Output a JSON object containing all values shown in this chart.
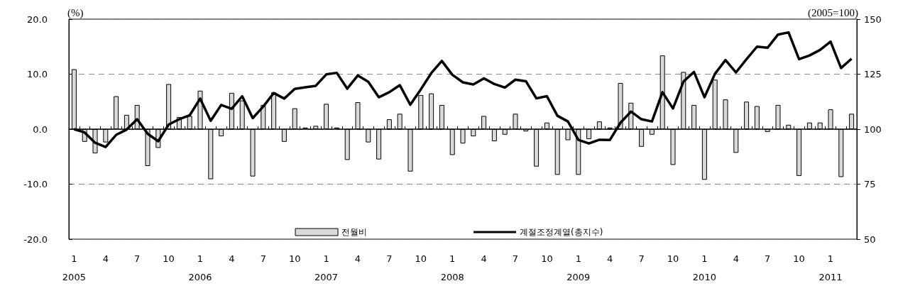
{
  "chart_data": {
    "type": "bar",
    "ylabel": "(%)",
    "y2label": "(2005=100)",
    "categories": [
      "1\n2005",
      null,
      null,
      "4",
      null,
      null,
      "7",
      null,
      null,
      "10",
      null,
      null,
      "1\n2006",
      null,
      null,
      "4",
      null,
      null,
      "7",
      null,
      null,
      "10",
      null,
      null,
      "1\n2007",
      null,
      null,
      "4",
      null,
      null,
      "7",
      null,
      null,
      "10",
      null,
      null,
      "1\n2008",
      null,
      null,
      "4",
      null,
      null,
      "7",
      null,
      null,
      "10",
      null,
      null,
      "1\n2009",
      null,
      null,
      "4",
      null,
      null,
      "7",
      null,
      null,
      "10",
      null,
      null,
      "1\n2010",
      null,
      null,
      "4",
      null,
      null,
      "7",
      null,
      null,
      "10",
      null,
      null,
      "1\n2011",
      null,
      null
    ],
    "series": [
      {
        "name": "전월비",
        "color": "#d9d9d9",
        "values": [
          10.9,
          -2.3,
          -4.4,
          -2.4,
          6.0,
          2.6,
          4.4,
          -6.7,
          -3.4,
          8.2,
          2.2,
          2.4,
          7.0,
          -9.1,
          -1.3,
          6.6,
          5.2,
          -8.6,
          4.4,
          6.7,
          -2.3,
          3.8,
          0.3,
          0.6,
          4.6,
          0.3,
          -5.6,
          4.9,
          -2.4,
          -5.5,
          1.8,
          2.8,
          -7.7,
          6.2,
          6.5,
          4.4,
          -4.7,
          -2.6,
          -1.3,
          2.4,
          -2.2,
          -1.0,
          2.8,
          -0.4,
          -6.8,
          1.2,
          -8.3,
          -2.0,
          -8.3,
          -1.8,
          1.4,
          0.3,
          8.4,
          4.8,
          -3.2,
          -1.0,
          13.4,
          -6.5,
          10.4,
          4.4,
          -9.2,
          9.0,
          5.4,
          -4.3,
          5.0,
          4.2,
          -0.5,
          4.4,
          0.8,
          -8.5,
          1.2,
          1.2,
          3.6,
          -8.7,
          2.8
        ]
      },
      {
        "name": "계절조정계열(총지수)",
        "type": "line",
        "axis": "y2",
        "color": "#000000",
        "values": [
          100.0,
          98.5,
          93.8,
          91.9,
          97.4,
          99.8,
          104.5,
          97.9,
          94.5,
          102.1,
          104.5,
          106.3,
          113.9,
          103.8,
          111.0,
          109.2,
          115.0,
          105.0,
          110.3,
          116.4,
          113.9,
          118.3,
          119.0,
          119.7,
          124.9,
          125.6,
          118.4,
          124.4,
          121.5,
          114.5,
          116.8,
          120.0,
          111.1,
          118.1,
          125.5,
          131.0,
          124.7,
          121.3,
          120.3,
          123.1,
          120.5,
          118.9,
          122.5,
          121.8,
          114.0,
          115.0,
          106.1,
          103.5,
          95.1,
          93.5,
          95.2,
          95.1,
          102.9,
          108.0,
          104.5,
          103.5,
          116.8,
          109.4,
          121.6,
          126.0,
          114.5,
          125.2,
          131.4,
          125.8,
          131.8,
          137.5,
          137.0,
          143.0,
          144.0,
          131.8,
          133.5,
          136.0,
          139.8,
          127.8,
          132.0
        ]
      }
    ],
    "ylim": [
      -20,
      20
    ],
    "yticks": [
      {
        "value": -20,
        "label": "-20.0"
      },
      {
        "value": -10,
        "label": "-10.0"
      },
      {
        "value": 0,
        "label": "0.0"
      },
      {
        "value": 10,
        "label": "10.0"
      },
      {
        "value": 20,
        "label": "20.0"
      }
    ],
    "y2lim": [
      50,
      150
    ],
    "y2ticks": [
      50,
      75,
      100,
      125,
      150
    ],
    "grid": "y",
    "legend": "bottom",
    "marker": "none",
    "line_style": "solid"
  }
}
